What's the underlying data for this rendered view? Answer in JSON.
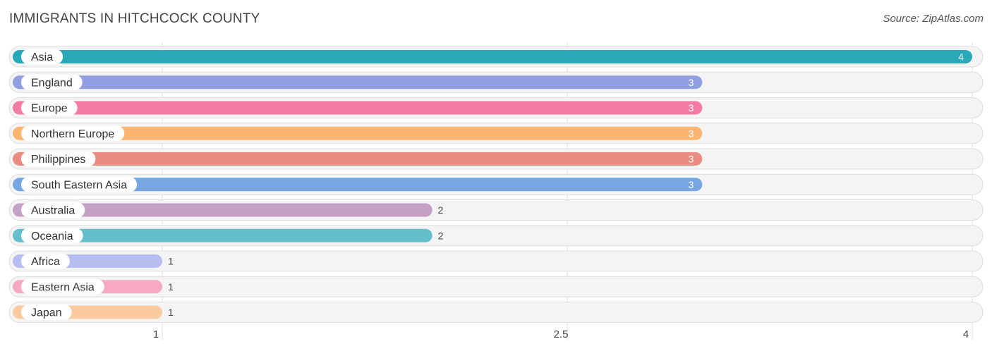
{
  "header": {
    "title": "IMMIGRANTS IN HITCHCOCK COUNTY",
    "source": "Source: ZipAtlas.com"
  },
  "chart_data": {
    "type": "bar",
    "orientation": "horizontal",
    "title": "IMMIGRANTS IN HITCHCOCK COUNTY",
    "categories": [
      "Asia",
      "England",
      "Europe",
      "Northern Europe",
      "Philippines",
      "South Eastern Asia",
      "Australia",
      "Oceania",
      "Africa",
      "Eastern Asia",
      "Japan"
    ],
    "values": [
      4,
      3,
      3,
      3,
      3,
      3,
      2,
      2,
      1,
      1,
      1
    ],
    "colors": [
      "#29a9b8",
      "#8f9fe0",
      "#f27ca2",
      "#fbb571",
      "#e98c82",
      "#77a7e0",
      "#c49fc6",
      "#63bfcc",
      "#b6bdf0",
      "#f7a9c3",
      "#fbcb9f"
    ],
    "xlim": [
      1,
      4
    ],
    "xticks": [
      1,
      2.5,
      4
    ],
    "xtick_labels": [
      "1",
      "2.5",
      "4"
    ],
    "xlabel": "",
    "ylabel": "",
    "grid": true
  }
}
